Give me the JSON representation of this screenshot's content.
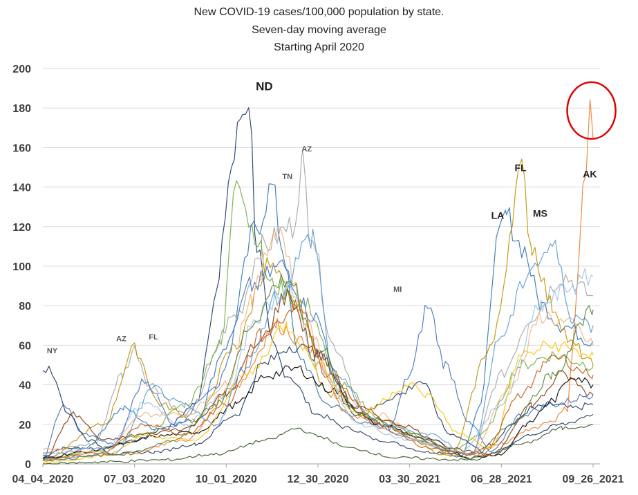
{
  "chart_data": {
    "type": "line",
    "title_lines": [
      "New COVID-19 cases/100,000 population by state.",
      "Seven-day moving average",
      "Starting April 2020"
    ],
    "xlabel": "",
    "ylabel": "",
    "x_tick_labels": [
      "04_04_2020",
      "07_03_2020",
      "10_01_2020",
      "12_30_2020",
      "03_30_2021",
      "06_28_2021",
      "09_26_2021"
    ],
    "y_ticks": [
      0,
      20,
      40,
      60,
      80,
      100,
      120,
      140,
      160,
      180,
      200
    ],
    "ylim": [
      0,
      200
    ],
    "xlim": [
      0,
      540
    ],
    "grid": "horizontal",
    "series": [
      {
        "color": "#1f3864",
        "values": [
          [
            0,
            4
          ],
          [
            20,
            8
          ],
          [
            60,
            8
          ],
          [
            90,
            12
          ],
          [
            120,
            18
          ],
          [
            150,
            30
          ],
          [
            170,
            85
          ],
          [
            185,
            150
          ],
          [
            196,
            178
          ],
          [
            202,
            186
          ],
          [
            210,
            110
          ],
          [
            225,
            60
          ],
          [
            240,
            45
          ],
          [
            270,
            25
          ],
          [
            300,
            18
          ],
          [
            330,
            12
          ],
          [
            380,
            6
          ],
          [
            420,
            5
          ],
          [
            440,
            10
          ],
          [
            460,
            20
          ],
          [
            480,
            28
          ],
          [
            500,
            30
          ],
          [
            520,
            28
          ],
          [
            540,
            30
          ]
        ]
      },
      {
        "color": "#2e75b6",
        "values": [
          [
            0,
            3
          ],
          [
            40,
            8
          ],
          [
            80,
            28
          ],
          [
            110,
            18
          ],
          [
            150,
            22
          ],
          [
            180,
            60
          ],
          [
            210,
            120
          ],
          [
            225,
            140
          ],
          [
            235,
            110
          ],
          [
            250,
            55
          ],
          [
            280,
            30
          ],
          [
            320,
            20
          ],
          [
            370,
            12
          ],
          [
            410,
            4
          ],
          [
            430,
            30
          ],
          [
            445,
            110
          ],
          [
            455,
            125
          ],
          [
            470,
            110
          ],
          [
            490,
            80
          ],
          [
            510,
            70
          ],
          [
            540,
            62
          ]
        ]
      },
      {
        "color": "#a5a5a5",
        "values": [
          [
            0,
            6
          ],
          [
            50,
            10
          ],
          [
            78,
            45
          ],
          [
            90,
            58
          ],
          [
            105,
            40
          ],
          [
            140,
            25
          ],
          [
            190,
            75
          ],
          [
            215,
            110
          ],
          [
            245,
            120
          ],
          [
            255,
            152
          ],
          [
            262,
            120
          ],
          [
            285,
            60
          ],
          [
            320,
            22
          ],
          [
            380,
            10
          ],
          [
            420,
            5
          ],
          [
            450,
            45
          ],
          [
            480,
            75
          ],
          [
            510,
            95
          ],
          [
            540,
            85
          ]
        ]
      },
      {
        "color": "#70ad47",
        "values": [
          [
            0,
            3
          ],
          [
            50,
            6
          ],
          [
            100,
            15
          ],
          [
            140,
            30
          ],
          [
            175,
            60
          ],
          [
            190,
            150
          ],
          [
            205,
            120
          ],
          [
            225,
            90
          ],
          [
            260,
            80
          ],
          [
            290,
            40
          ],
          [
            340,
            20
          ],
          [
            400,
            6
          ],
          [
            430,
            15
          ],
          [
            470,
            50
          ],
          [
            500,
            55
          ],
          [
            540,
            50
          ]
        ]
      },
      {
        "color": "#bf9000",
        "values": [
          [
            0,
            2
          ],
          [
            60,
            20
          ],
          [
            90,
            58
          ],
          [
            115,
            30
          ],
          [
            150,
            22
          ],
          [
            190,
            60
          ],
          [
            220,
            100
          ],
          [
            250,
            80
          ],
          [
            280,
            35
          ],
          [
            330,
            22
          ],
          [
            400,
            4
          ],
          [
            440,
            60
          ],
          [
            470,
            147
          ],
          [
            480,
            110
          ],
          [
            500,
            80
          ],
          [
            520,
            60
          ],
          [
            540,
            50
          ]
        ]
      },
      {
        "color": "#4472c4",
        "values": [
          [
            0,
            3
          ],
          [
            20,
            30
          ],
          [
            40,
            15
          ],
          [
            70,
            10
          ],
          [
            100,
            42
          ],
          [
            130,
            20
          ],
          [
            170,
            40
          ],
          [
            205,
            90
          ],
          [
            235,
            100
          ],
          [
            265,
            75
          ],
          [
            300,
            30
          ],
          [
            340,
            18
          ],
          [
            360,
            45
          ],
          [
            378,
            80
          ],
          [
            395,
            50
          ],
          [
            420,
            20
          ],
          [
            440,
            6
          ],
          [
            470,
            25
          ],
          [
            500,
            30
          ],
          [
            540,
            35
          ]
        ]
      },
      {
        "color": "#203864",
        "values": [
          [
            0,
            50
          ],
          [
            10,
            45
          ],
          [
            25,
            25
          ],
          [
            45,
            12
          ],
          [
            70,
            5
          ],
          [
            110,
            6
          ],
          [
            150,
            10
          ],
          [
            190,
            25
          ],
          [
            215,
            50
          ],
          [
            245,
            60
          ],
          [
            270,
            55
          ],
          [
            310,
            25
          ],
          [
            350,
            35
          ],
          [
            370,
            42
          ],
          [
            400,
            15
          ],
          [
            440,
            5
          ],
          [
            480,
            15
          ],
          [
            510,
            20
          ],
          [
            540,
            25
          ]
        ]
      },
      {
        "color": "#ed7d31",
        "values": [
          [
            0,
            3
          ],
          [
            80,
            5
          ],
          [
            140,
            12
          ],
          [
            190,
            40
          ],
          [
            230,
            70
          ],
          [
            260,
            60
          ],
          [
            300,
            25
          ],
          [
            350,
            15
          ],
          [
            410,
            4
          ],
          [
            450,
            10
          ],
          [
            480,
            18
          ],
          [
            500,
            22
          ],
          [
            515,
            28
          ],
          [
            520,
            60
          ],
          [
            526,
            100
          ],
          [
            530,
            140
          ],
          [
            534,
            150
          ],
          [
            537,
            178
          ],
          [
            540,
            165
          ]
        ]
      },
      {
        "color": "#000000",
        "values": [
          [
            0,
            3
          ],
          [
            40,
            6
          ],
          [
            80,
            10
          ],
          [
            110,
            14
          ],
          [
            150,
            16
          ],
          [
            190,
            30
          ],
          [
            220,
            45
          ],
          [
            250,
            48
          ],
          [
            280,
            38
          ],
          [
            330,
            20
          ],
          [
            380,
            12
          ],
          [
            420,
            3
          ],
          [
            450,
            5
          ],
          [
            475,
            20
          ],
          [
            500,
            32
          ],
          [
            520,
            45
          ],
          [
            540,
            40
          ]
        ]
      },
      {
        "color": "#f4b183",
        "values": [
          [
            0,
            8
          ],
          [
            60,
            6
          ],
          [
            100,
            25
          ],
          [
            140,
            25
          ],
          [
            180,
            40
          ],
          [
            205,
            85
          ],
          [
            230,
            120
          ],
          [
            260,
            70
          ],
          [
            290,
            35
          ],
          [
            330,
            25
          ],
          [
            380,
            10
          ],
          [
            420,
            5
          ],
          [
            460,
            40
          ],
          [
            490,
            75
          ],
          [
            520,
            70
          ],
          [
            540,
            60
          ]
        ]
      },
      {
        "color": "#9dc3e6",
        "values": [
          [
            0,
            5
          ],
          [
            60,
            8
          ],
          [
            100,
            30
          ],
          [
            140,
            20
          ],
          [
            180,
            35
          ],
          [
            210,
            75
          ],
          [
            240,
            90
          ],
          [
            270,
            50
          ],
          [
            310,
            20
          ],
          [
            360,
            12
          ],
          [
            410,
            6
          ],
          [
            450,
            30
          ],
          [
            490,
            80
          ],
          [
            520,
            90
          ],
          [
            540,
            95
          ]
        ]
      },
      {
        "color": "#375623",
        "values": [
          [
            0,
            0
          ],
          [
            60,
            1
          ],
          [
            120,
            2
          ],
          [
            170,
            5
          ],
          [
            220,
            12
          ],
          [
            250,
            18
          ],
          [
            270,
            14
          ],
          [
            300,
            8
          ],
          [
            350,
            3
          ],
          [
            420,
            2
          ],
          [
            470,
            10
          ],
          [
            510,
            18
          ],
          [
            540,
            20
          ]
        ]
      },
      {
        "color": "#843c0c",
        "values": [
          [
            0,
            2
          ],
          [
            30,
            25
          ],
          [
            60,
            12
          ],
          [
            100,
            15
          ],
          [
            140,
            18
          ],
          [
            180,
            35
          ],
          [
            210,
            60
          ],
          [
            240,
            85
          ],
          [
            270,
            55
          ],
          [
            310,
            28
          ],
          [
            350,
            20
          ],
          [
            400,
            8
          ],
          [
            440,
            4
          ],
          [
            480,
            30
          ],
          [
            510,
            45
          ],
          [
            540,
            35
          ]
        ]
      },
      {
        "color": "#ffc000",
        "values": [
          [
            0,
            1
          ],
          [
            60,
            4
          ],
          [
            100,
            14
          ],
          [
            150,
            12
          ],
          [
            200,
            45
          ],
          [
            240,
            70
          ],
          [
            270,
            50
          ],
          [
            310,
            25
          ],
          [
            360,
            40
          ],
          [
            375,
            35
          ],
          [
            410,
            15
          ],
          [
            440,
            8
          ],
          [
            470,
            55
          ],
          [
            500,
            60
          ],
          [
            540,
            55
          ]
        ]
      },
      {
        "color": "#5b9bd5",
        "values": [
          [
            0,
            2
          ],
          [
            70,
            5
          ],
          [
            110,
            38
          ],
          [
            135,
            30
          ],
          [
            170,
            20
          ],
          [
            200,
            50
          ],
          [
            230,
            85
          ],
          [
            265,
            115
          ],
          [
            285,
            45
          ],
          [
            330,
            20
          ],
          [
            380,
            15
          ],
          [
            420,
            4
          ],
          [
            450,
            65
          ],
          [
            480,
            100
          ],
          [
            500,
            110
          ],
          [
            520,
            75
          ],
          [
            540,
            70
          ]
        ]
      },
      {
        "color": "#548235",
        "values": [
          [
            0,
            2
          ],
          [
            80,
            5
          ],
          [
            130,
            12
          ],
          [
            170,
            30
          ],
          [
            210,
            75
          ],
          [
            240,
            95
          ],
          [
            270,
            60
          ],
          [
            310,
            25
          ],
          [
            360,
            15
          ],
          [
            420,
            3
          ],
          [
            460,
            20
          ],
          [
            500,
            45
          ],
          [
            540,
            78
          ]
        ]
      },
      {
        "color": "#c55a11",
        "values": [
          [
            0,
            2
          ],
          [
            60,
            6
          ],
          [
            100,
            20
          ],
          [
            140,
            15
          ],
          [
            180,
            30
          ],
          [
            215,
            65
          ],
          [
            250,
            80
          ],
          [
            280,
            45
          ],
          [
            330,
            20
          ],
          [
            380,
            8
          ],
          [
            430,
            4
          ],
          [
            470,
            35
          ],
          [
            500,
            55
          ],
          [
            540,
            45
          ]
        ]
      }
    ]
  },
  "annotations": [
    {
      "text": "NY",
      "x": 4,
      "y": 56,
      "bold": false,
      "size": "small"
    },
    {
      "text": "AZ",
      "x": 72,
      "y": 62,
      "bold": false,
      "size": "small"
    },
    {
      "text": "FL",
      "x": 104,
      "y": 63,
      "bold": false,
      "size": "small"
    },
    {
      "text": "ND",
      "x": 209,
      "y": 189,
      "bold": true,
      "size": "large"
    },
    {
      "text": "TN",
      "x": 235,
      "y": 144,
      "bold": false,
      "size": "small"
    },
    {
      "text": "AZ",
      "x": 254,
      "y": 158,
      "bold": false,
      "size": "small"
    },
    {
      "text": "MI",
      "x": 344,
      "y": 87,
      "bold": false,
      "size": "small"
    },
    {
      "text": "LA",
      "x": 440,
      "y": 124,
      "bold": true,
      "size": "medium"
    },
    {
      "text": "FL",
      "x": 463,
      "y": 148,
      "bold": true,
      "size": "medium"
    },
    {
      "text": "MS",
      "x": 481,
      "y": 125,
      "bold": true,
      "size": "medium"
    },
    {
      "text": "AK",
      "x": 530,
      "y": 145,
      "bold": true,
      "size": "medium"
    }
  ],
  "highlight_circle": {
    "cx": 537,
    "cy": 178,
    "color": "#e00000"
  }
}
